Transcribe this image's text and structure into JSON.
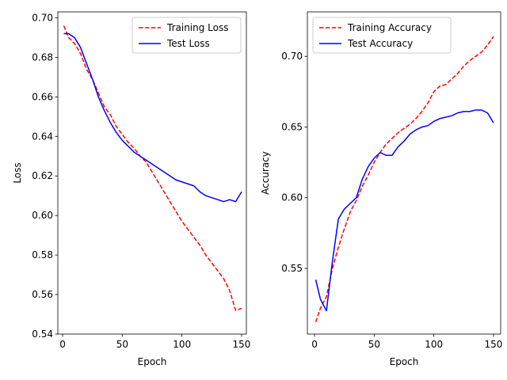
{
  "chart_data": [
    {
      "type": "line",
      "xlabel": "Epoch",
      "ylabel": "Loss",
      "xlim": [
        -4,
        154
      ],
      "ylim": [
        0.54,
        0.703
      ],
      "xticks": [
        0,
        50,
        100,
        150
      ],
      "yticks": [
        0.54,
        0.56,
        0.58,
        0.6,
        0.62,
        0.64,
        0.66,
        0.68,
        0.7
      ],
      "ytick_format": 2,
      "grid": false,
      "legend": "top-right",
      "series": [
        {
          "name": "Training Loss",
          "color": "#ff0000",
          "style": "dashed",
          "x": [
            1,
            5,
            10,
            15,
            20,
            25,
            30,
            35,
            40,
            45,
            50,
            55,
            60,
            65,
            70,
            75,
            80,
            85,
            90,
            95,
            100,
            105,
            110,
            115,
            120,
            125,
            130,
            135,
            140,
            145,
            150
          ],
          "y": [
            0.696,
            0.69,
            0.687,
            0.682,
            0.674,
            0.669,
            0.662,
            0.655,
            0.651,
            0.645,
            0.641,
            0.637,
            0.634,
            0.63,
            0.627,
            0.622,
            0.617,
            0.612,
            0.607,
            0.602,
            0.597,
            0.593,
            0.589,
            0.585,
            0.58,
            0.576,
            0.572,
            0.568,
            0.562,
            0.552,
            0.553
          ]
        },
        {
          "name": "Test Loss",
          "color": "#0000ff",
          "style": "solid",
          "x": [
            1,
            5,
            10,
            15,
            20,
            25,
            30,
            35,
            40,
            45,
            50,
            55,
            60,
            65,
            70,
            75,
            80,
            85,
            90,
            95,
            100,
            105,
            110,
            115,
            120,
            125,
            130,
            135,
            140,
            145,
            150
          ],
          "y": [
            0.692,
            0.692,
            0.69,
            0.685,
            0.677,
            0.669,
            0.66,
            0.653,
            0.647,
            0.642,
            0.638,
            0.635,
            0.632,
            0.63,
            0.628,
            0.626,
            0.624,
            0.622,
            0.62,
            0.618,
            0.617,
            0.616,
            0.615,
            0.612,
            0.61,
            0.609,
            0.608,
            0.607,
            0.608,
            0.607,
            0.612
          ]
        }
      ]
    },
    {
      "type": "line",
      "xlabel": "Epoch",
      "ylabel": "Accuracy",
      "xlim": [
        -6,
        156
      ],
      "ylim": [
        0.5035,
        0.7315
      ],
      "xticks": [
        0,
        50,
        100,
        150
      ],
      "yticks": [
        0.55,
        0.6,
        0.65,
        0.7
      ],
      "ytick_format": 2,
      "grid": false,
      "legend": "top-left",
      "series": [
        {
          "name": "Training Accuracy",
          "color": "#ff0000",
          "style": "dashed",
          "x": [
            1,
            5,
            10,
            15,
            20,
            25,
            30,
            35,
            40,
            45,
            50,
            55,
            60,
            65,
            70,
            75,
            80,
            85,
            90,
            95,
            100,
            105,
            110,
            115,
            120,
            125,
            130,
            135,
            140,
            145,
            150
          ],
          "y": [
            0.512,
            0.522,
            0.53,
            0.55,
            0.565,
            0.578,
            0.59,
            0.598,
            0.608,
            0.616,
            0.625,
            0.632,
            0.638,
            0.642,
            0.646,
            0.649,
            0.652,
            0.656,
            0.661,
            0.667,
            0.675,
            0.679,
            0.68,
            0.684,
            0.688,
            0.693,
            0.697,
            0.7,
            0.703,
            0.708,
            0.714
          ]
        },
        {
          "name": "Test Accuracy",
          "color": "#0000ff",
          "style": "solid",
          "x": [
            1,
            5,
            10,
            15,
            20,
            25,
            30,
            35,
            40,
            45,
            50,
            55,
            60,
            65,
            70,
            75,
            80,
            85,
            90,
            95,
            100,
            105,
            110,
            115,
            120,
            125,
            130,
            135,
            140,
            145,
            150
          ],
          "y": [
            0.542,
            0.528,
            0.52,
            0.555,
            0.585,
            0.592,
            0.596,
            0.6,
            0.613,
            0.622,
            0.628,
            0.632,
            0.63,
            0.63,
            0.636,
            0.64,
            0.645,
            0.648,
            0.65,
            0.651,
            0.654,
            0.656,
            0.657,
            0.658,
            0.66,
            0.661,
            0.661,
            0.662,
            0.662,
            0.66,
            0.653
          ]
        }
      ]
    }
  ]
}
